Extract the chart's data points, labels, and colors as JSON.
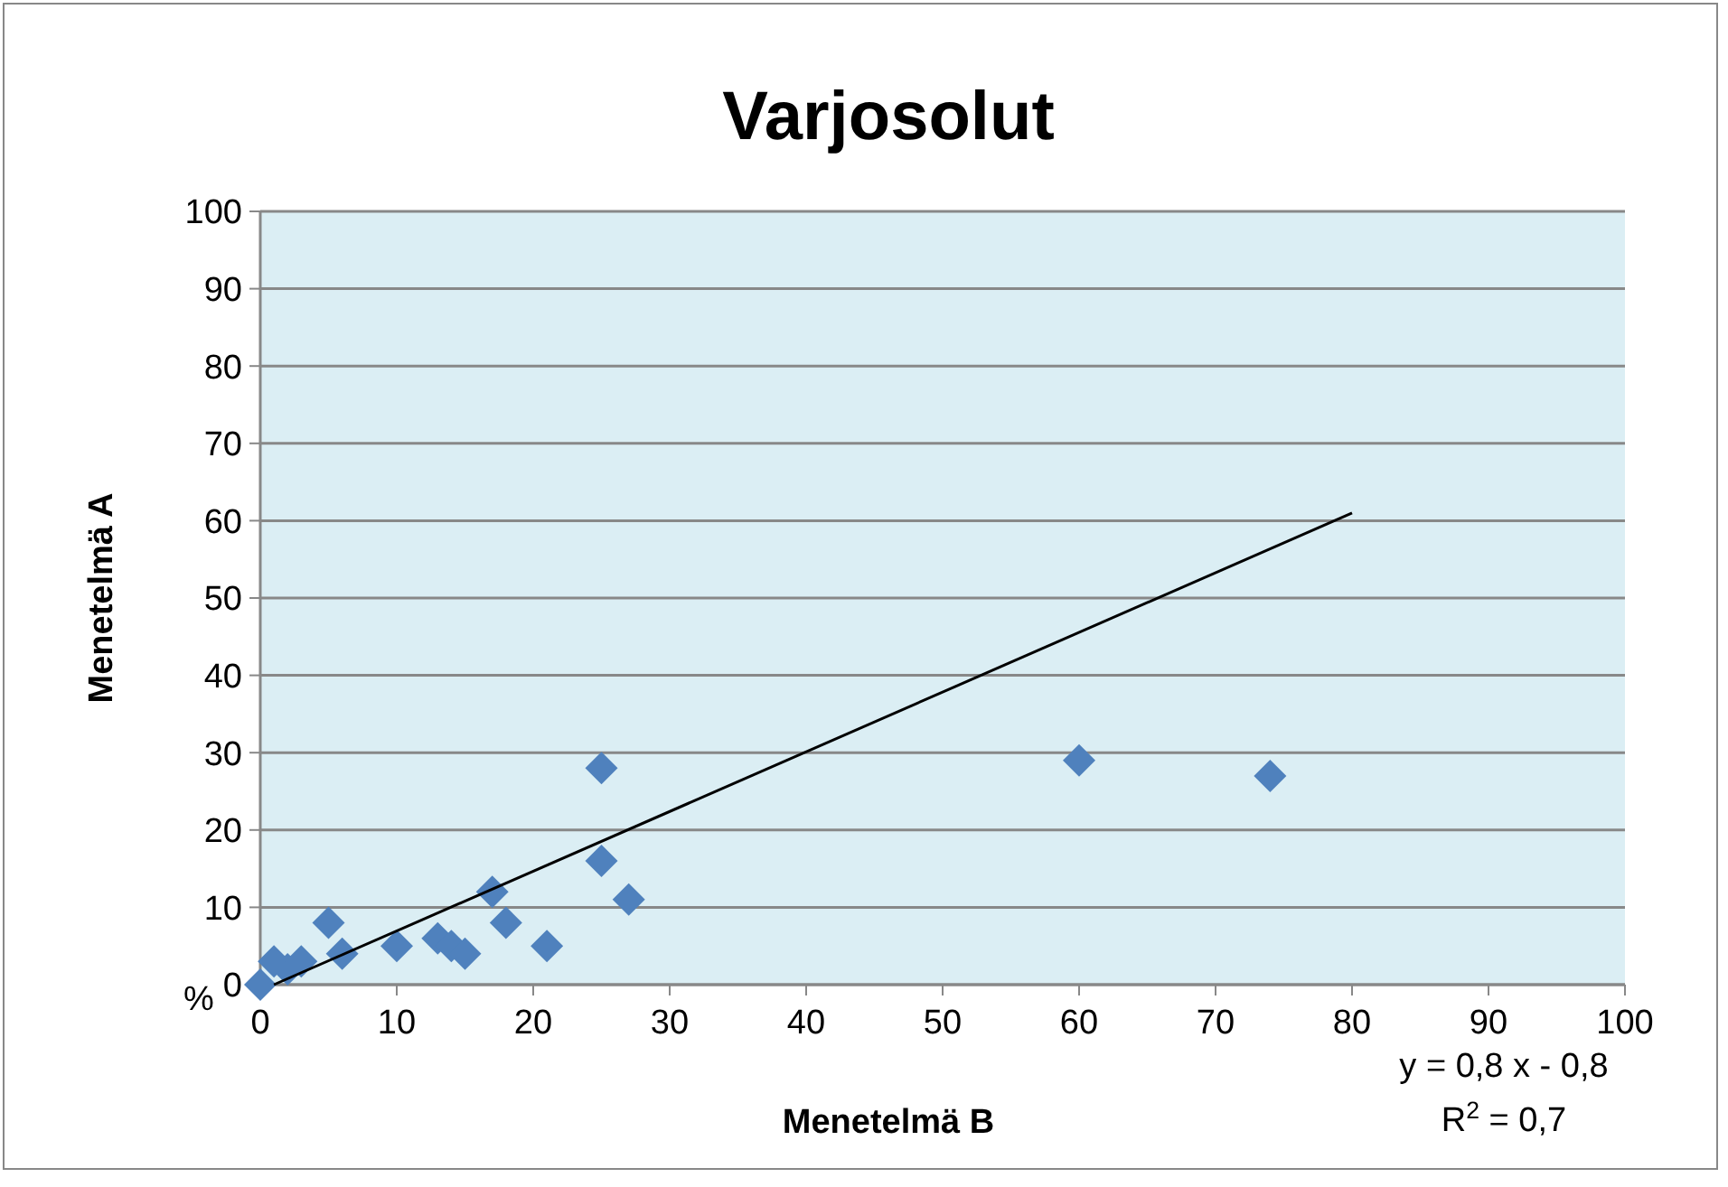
{
  "chart_data": {
    "type": "scatter",
    "title": "Varjosolut",
    "xlabel": "Menetelmä B",
    "ylabel": "Menetelmä A",
    "xlim": [
      0,
      100
    ],
    "xticks": [
      0,
      10,
      20,
      30,
      40,
      50,
      60,
      70,
      80,
      90,
      100
    ],
    "ylim": [
      0,
      100
    ],
    "yticks": [
      0,
      10,
      20,
      30,
      40,
      50,
      60,
      70,
      80,
      90,
      100
    ],
    "grid": "y",
    "marker": "diamond",
    "series": [
      {
        "color": "#4f81bd",
        "x": [
          0,
          1,
          2,
          3,
          5,
          6,
          10,
          13,
          14,
          15,
          17,
          18,
          21,
          25,
          25,
          27,
          60,
          74
        ],
        "values": [
          0,
          3,
          2,
          3,
          8,
          4,
          5,
          6,
          5,
          4,
          12,
          8,
          5,
          28,
          16,
          11,
          29,
          27
        ]
      },
      {
        "type": "line",
        "color": "#000000",
        "marker": "none",
        "x": [
          1,
          80
        ],
        "values": [
          0,
          61
        ]
      }
    ],
    "annotations": [
      "%",
      "y = 0,8 x - 0,8",
      "R$^{2}$ = 0,7"
    ]
  }
}
